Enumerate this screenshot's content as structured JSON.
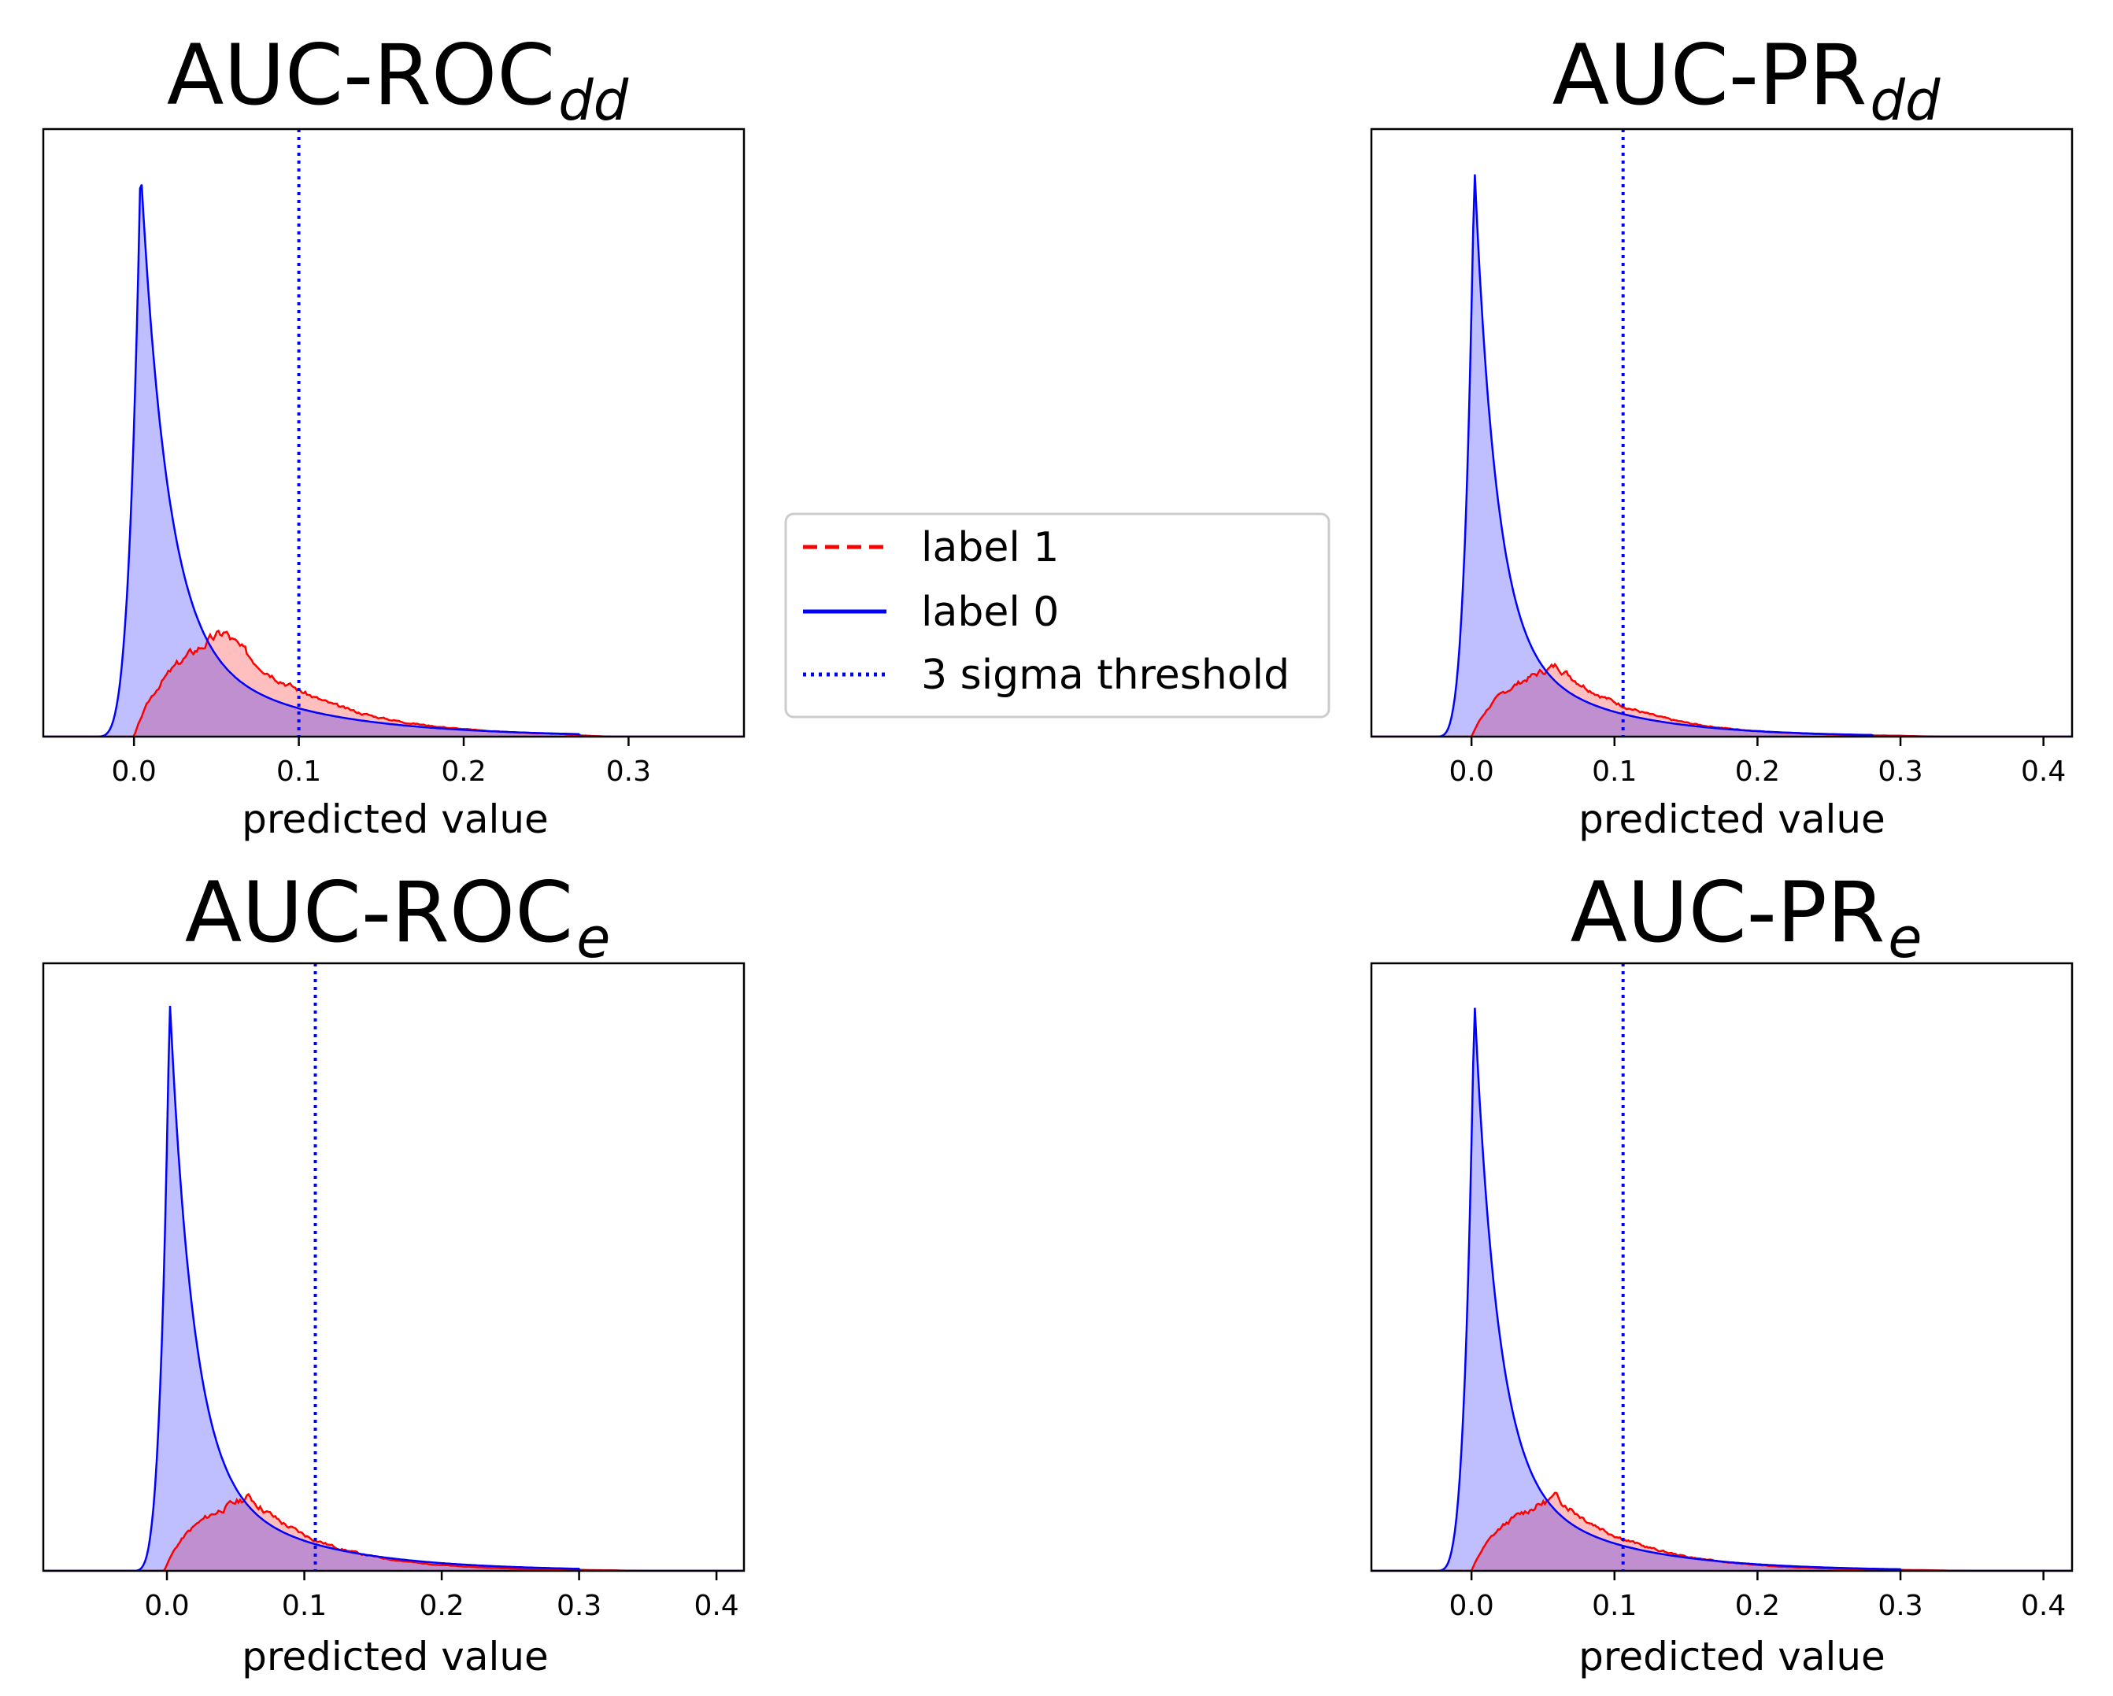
{
  "colors": {
    "label1": "#ff0000",
    "label0": "#0000ff",
    "threshold": "#0000ff",
    "label1_fill": "rgba(255,0,0,0.25)",
    "label0_fill": "rgba(0,0,255,0.25)"
  },
  "legend": {
    "items": [
      {
        "label": "label 1",
        "style": "dashed",
        "color": "#ff0000"
      },
      {
        "label": "label 0",
        "style": "solid",
        "color": "#0000ff"
      },
      {
        "label": "3 sigma threshold",
        "style": "dotted",
        "color": "#0000ff"
      }
    ]
  },
  "chart_data": [
    {
      "type": "area",
      "title_main": "AUC-ROC",
      "title_sub": "dd",
      "xlabel": "predicted value",
      "ylabel": "",
      "xlim": [
        -0.055,
        0.37
      ],
      "ylim": [
        0,
        1.06
      ],
      "xticks": [
        0.0,
        0.1,
        0.2,
        0.3
      ],
      "xtick_labels": [
        "0.0",
        "0.1",
        "0.2",
        "0.3"
      ],
      "threshold": 0.1,
      "series": [
        {
          "name": "label 0",
          "peak_x": 0.004,
          "peak": 1.0,
          "decay": 0.016,
          "tail_x": 0.27
        },
        {
          "name": "label 1",
          "start_x": 0.0,
          "mode_x": 0.055,
          "peak": 0.185,
          "end_x": 0.29,
          "seed": 3
        }
      ]
    },
    {
      "type": "area",
      "title_main": "AUC-PR",
      "title_sub": "dd",
      "xlabel": "predicted value",
      "ylabel": "",
      "xlim": [
        -0.07,
        0.42
      ],
      "ylim": [
        0,
        1.06
      ],
      "xticks": [
        0.0,
        0.1,
        0.2,
        0.3,
        0.4
      ],
      "xtick_labels": [
        "0.0",
        "0.1",
        "0.2",
        "0.3",
        "0.4"
      ],
      "threshold": 0.106,
      "series": [
        {
          "name": "label 0",
          "peak_x": 0.002,
          "peak": 1.0,
          "decay": 0.015,
          "tail_x": 0.28
        },
        {
          "name": "label 1",
          "start_x": 0.0,
          "mode_x": 0.06,
          "peak": 0.125,
          "end_x": 0.33,
          "seed": 7
        }
      ]
    },
    {
      "type": "area",
      "title_main": "AUC-ROC",
      "title_sub": "e",
      "xlabel": "predicted value",
      "ylabel": "",
      "xlim": [
        -0.09,
        0.42
      ],
      "ylim": [
        0,
        1.06
      ],
      "xticks": [
        0.0,
        0.1,
        0.2,
        0.3,
        0.4
      ],
      "xtick_labels": [
        "0.0",
        "0.1",
        "0.2",
        "0.3",
        "0.4"
      ],
      "threshold": 0.108,
      "series": [
        {
          "name": "label 0",
          "peak_x": 0.002,
          "peak": 1.0,
          "decay": 0.017,
          "tail_x": 0.3
        },
        {
          "name": "label 1",
          "start_x": -0.002,
          "mode_x": 0.06,
          "peak": 0.13,
          "end_x": 0.35,
          "seed": 11
        }
      ]
    },
    {
      "type": "area",
      "title_main": "AUC-PR",
      "title_sub": "e",
      "xlabel": "predicted value",
      "ylabel": "",
      "xlim": [
        -0.07,
        0.42
      ],
      "ylim": [
        0,
        1.06
      ],
      "xticks": [
        0.0,
        0.1,
        0.2,
        0.3,
        0.4
      ],
      "xtick_labels": [
        "0.0",
        "0.1",
        "0.2",
        "0.3",
        "0.4"
      ],
      "threshold": 0.106,
      "series": [
        {
          "name": "label 0",
          "peak_x": 0.002,
          "peak": 1.0,
          "decay": 0.016,
          "tail_x": 0.3
        },
        {
          "name": "label 1",
          "start_x": 0.0,
          "mode_x": 0.06,
          "peak": 0.13,
          "end_x": 0.35,
          "seed": 13
        }
      ]
    }
  ]
}
